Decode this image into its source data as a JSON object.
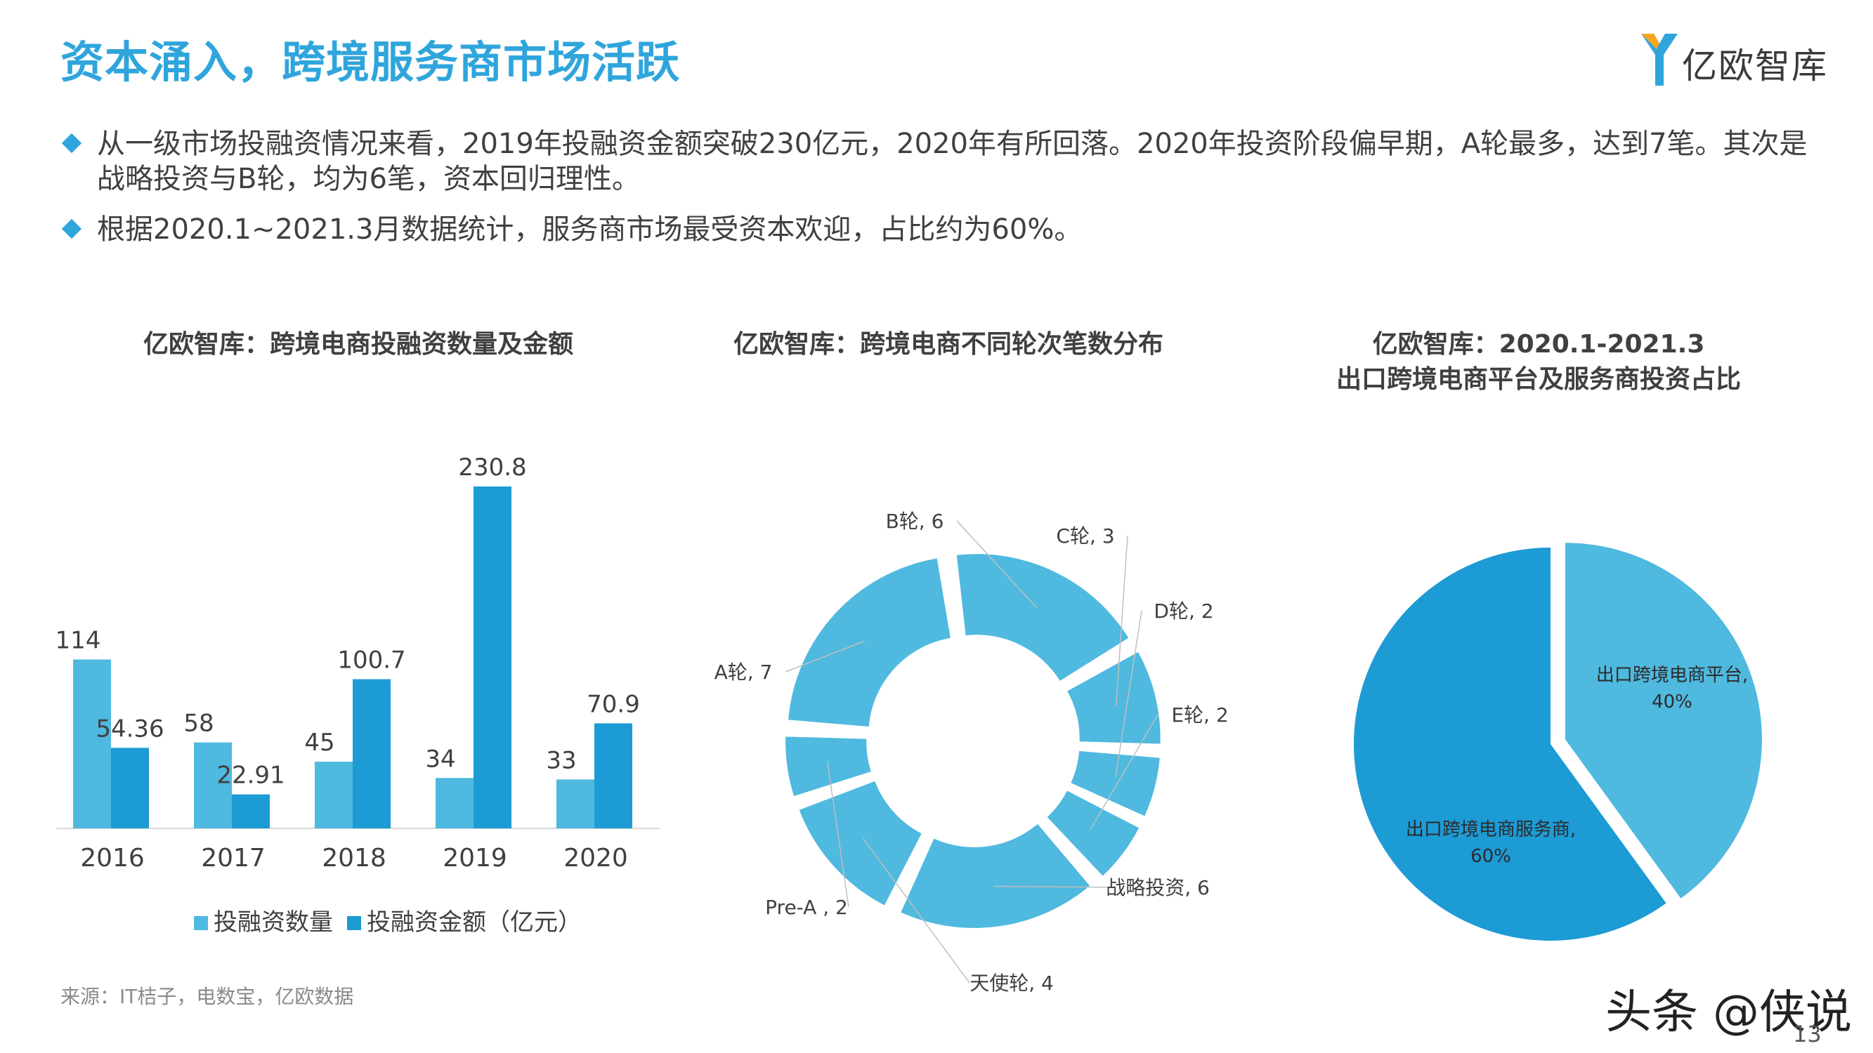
{
  "slide": {
    "title": "资本涌入，跨境服务商市场活跃",
    "logo_text": "亿欧智库",
    "bullets": [
      "从一级市场投融资情况来看，2019年投融资金额突破230亿元，2020年有所回落。2020年投资阶段偏早期，A轮最多，达到7笔。其次是战略投资与B轮，均为6笔，资本回归理性。",
      "根据2020.1~2021.3月数据统计，服务商市场最受资本欢迎，占比约为60%。"
    ],
    "source": "来源：IT桔子，电数宝，亿欧数据",
    "watermark": "头条 @侠说",
    "page_number": "13"
  },
  "colors": {
    "accent": "#2fa5dc",
    "series_light": "#4fb9df",
    "series_dark": "#1c9bd4",
    "text": "#404040"
  },
  "chart_data": [
    {
      "type": "bar",
      "title": "亿欧智库：跨境电商投融资数量及金额",
      "categories": [
        "2016",
        "2017",
        "2018",
        "2019",
        "2020"
      ],
      "series": [
        {
          "name": "投融资数量",
          "values": [
            114,
            58,
            45,
            34,
            33
          ],
          "color": "#4fb9df"
        },
        {
          "name": "投融资金额（亿元）",
          "values": [
            54.36,
            22.91,
            100.7,
            230.8,
            70.9
          ],
          "color": "#1c9bd4"
        }
      ],
      "value_labels": [
        [
          "114",
          "58",
          "45",
          "34",
          "33"
        ],
        [
          "54.36",
          "22.91",
          "100.7",
          "230.8",
          "70.9"
        ]
      ],
      "ylim": [
        0,
        230.8
      ],
      "legend_position": "bottom",
      "grid": false
    },
    {
      "type": "pie",
      "variant": "donut-exploded",
      "title": "亿欧智库：跨境电商不同轮次笔数分布",
      "slices": [
        {
          "label": "B轮",
          "value": 6,
          "text": "B轮, 6"
        },
        {
          "label": "C轮",
          "value": 3,
          "text": "C轮, 3"
        },
        {
          "label": "D轮",
          "value": 2,
          "text": "D轮, 2"
        },
        {
          "label": "E轮",
          "value": 2,
          "text": "E轮, 2"
        },
        {
          "label": "战略投资",
          "value": 6,
          "text": "战略投资, 6"
        },
        {
          "label": "天使轮",
          "value": 4,
          "text": "天使轮, 4"
        },
        {
          "label": "Pre-A",
          "value": 2,
          "text": "Pre-A , 2"
        },
        {
          "label": "A轮",
          "value": 7,
          "text": "A轮, 7"
        }
      ],
      "color": "#4fb9df"
    },
    {
      "type": "pie",
      "variant": "exploded",
      "title_lines": [
        "亿欧智库：2020.1-2021.3",
        "出口跨境电商平台及服务商投资占比"
      ],
      "slices": [
        {
          "label": "出口跨境电商平台",
          "value": 40,
          "text_lines": [
            "出口跨境电商平台,",
            "40%"
          ],
          "color": "#4fb9df"
        },
        {
          "label": "出口跨境电商服务商",
          "value": 60,
          "text_lines": [
            "出口跨境电商服务商,",
            "60%"
          ],
          "color": "#1c9bd4"
        }
      ]
    }
  ]
}
